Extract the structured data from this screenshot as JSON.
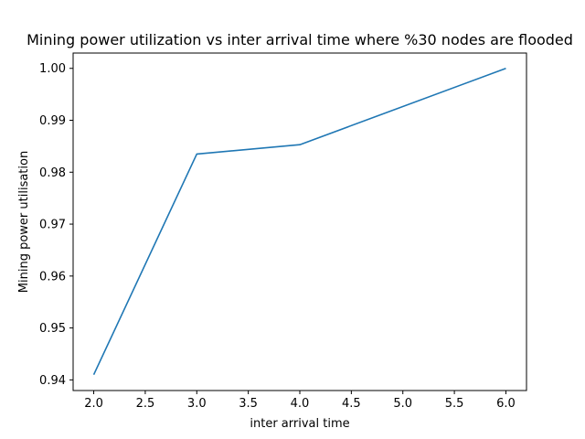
{
  "chart_data": {
    "type": "line",
    "title": "Mining power utilization vs inter arrival time where %30 nodes are flooded",
    "xlabel": "inter arrival time",
    "ylabel": "Mining power utilisation",
    "x": [
      2.0,
      3.0,
      4.0,
      6.0
    ],
    "series": [
      {
        "values": [
          0.941,
          0.9835,
          0.9853,
          1.0
        ],
        "color": "#1f77b4"
      }
    ],
    "xlim": [
      1.8,
      6.2
    ],
    "ylim": [
      0.93795,
      1.00295
    ],
    "xticks": [
      2.0,
      2.5,
      3.0,
      3.5,
      4.0,
      4.5,
      5.0,
      5.5,
      6.0
    ],
    "xtick_labels": [
      "2.0",
      "2.5",
      "3.0",
      "3.5",
      "4.0",
      "4.5",
      "5.0",
      "5.5",
      "6.0"
    ],
    "yticks": [
      0.94,
      0.95,
      0.96,
      0.97,
      0.98,
      0.99,
      1.0
    ],
    "ytick_labels": [
      "0.94",
      "0.95",
      "0.96",
      "0.97",
      "0.98",
      "0.99",
      "1.00"
    ],
    "grid": false,
    "legend": "none"
  }
}
